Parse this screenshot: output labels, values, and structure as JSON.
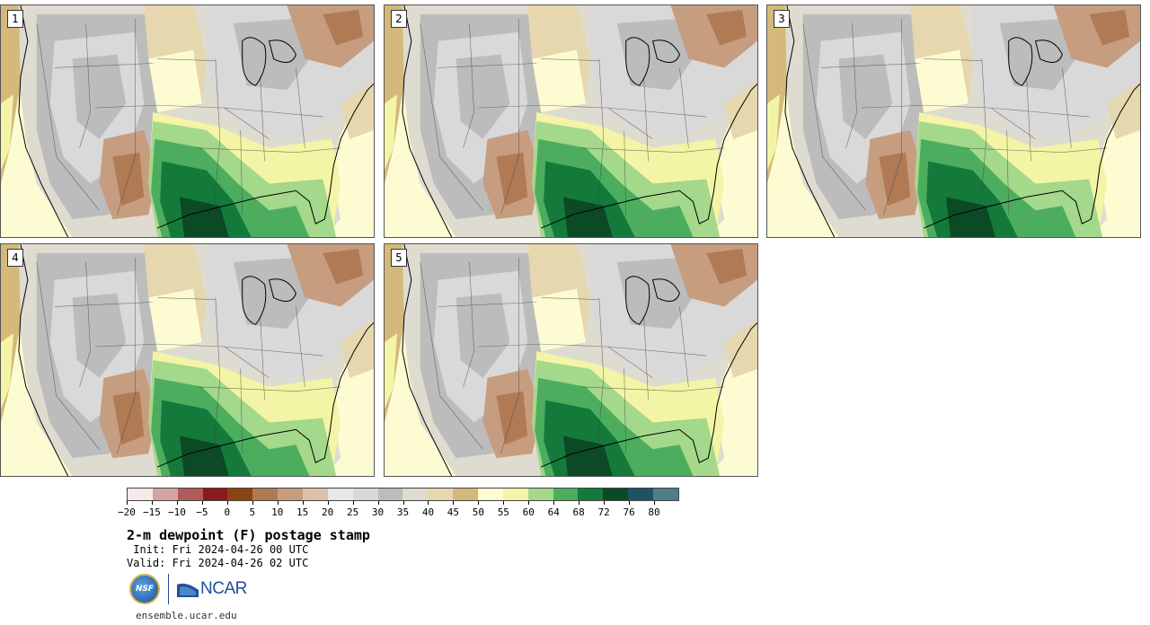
{
  "panels": [
    {
      "label": "1"
    },
    {
      "label": "2"
    },
    {
      "label": "3"
    },
    {
      "label": "4"
    },
    {
      "label": "5"
    }
  ],
  "colorbar": {
    "colors": [
      "#f6e9e9",
      "#d6a3a3",
      "#b35a5a",
      "#8b1a1a",
      "#8b4513",
      "#b07a55",
      "#c79d80",
      "#dcc1a8",
      "#e8e8e8",
      "#d9d9d9",
      "#bcbcbc",
      "#dedbd0",
      "#e6d7ae",
      "#d4b97a",
      "#fdfbd2",
      "#f4f4a6",
      "#a4d88a",
      "#4cad5f",
      "#137a3b",
      "#0b4a25",
      "#1f5264",
      "#4f7e86"
    ],
    "tick_labels": [
      "−20",
      "−15",
      "−10",
      "−5",
      "0",
      "5",
      "10",
      "15",
      "20",
      "25",
      "30",
      "35",
      "40",
      "45",
      "50",
      "55",
      "60",
      "64",
      "68",
      "72",
      "76",
      "80"
    ]
  },
  "title": "2-m dewpoint (F) postage stamp",
  "init": " Init: Fri 2024-04-26 00 UTC",
  "valid": "Valid: Fri 2024-04-26 02 UTC",
  "logos": {
    "nsf": "NSF",
    "ncar": "NCAR"
  },
  "url": "ensemble.ucar.edu"
}
